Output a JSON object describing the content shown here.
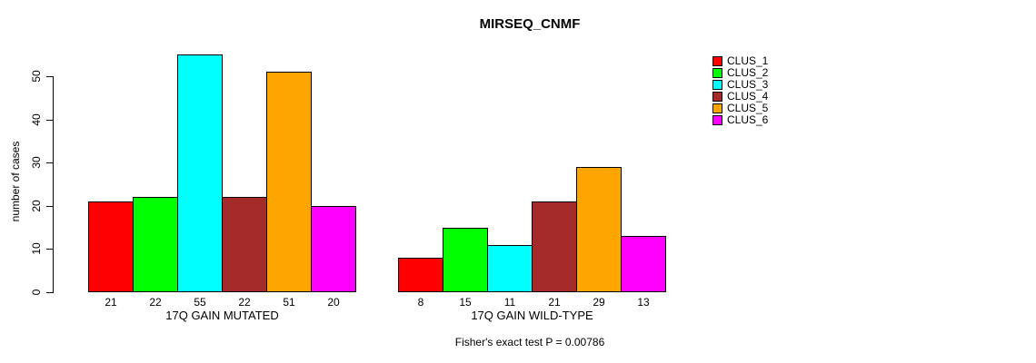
{
  "chart_data": {
    "type": "bar",
    "title": "MIRSEQ_CNMF",
    "ylabel": "number of cases",
    "xlabel": "",
    "ylim": [
      0,
      55
    ],
    "yticks": [
      0,
      10,
      20,
      30,
      40,
      50
    ],
    "grid": false,
    "legend_position": "right",
    "categories": [
      "17Q GAIN MUTATED",
      "17Q GAIN WILD-TYPE"
    ],
    "series": [
      {
        "name": "CLUS_1",
        "color": "#FF0000",
        "values": [
          21,
          8
        ]
      },
      {
        "name": "CLUS_2",
        "color": "#00FF00",
        "values": [
          22,
          15
        ]
      },
      {
        "name": "CLUS_3",
        "color": "#00FFFF",
        "values": [
          55,
          11
        ]
      },
      {
        "name": "CLUS_4",
        "color": "#A52A2A",
        "values": [
          22,
          21
        ]
      },
      {
        "name": "CLUS_5",
        "color": "#FFA500",
        "values": [
          51,
          29
        ]
      },
      {
        "name": "CLUS_6",
        "color": "#FF00FF",
        "values": [
          20,
          13
        ]
      }
    ],
    "bar_value_labels_shown": true,
    "footnote": "Fisher's exact test P = 0.00786"
  }
}
